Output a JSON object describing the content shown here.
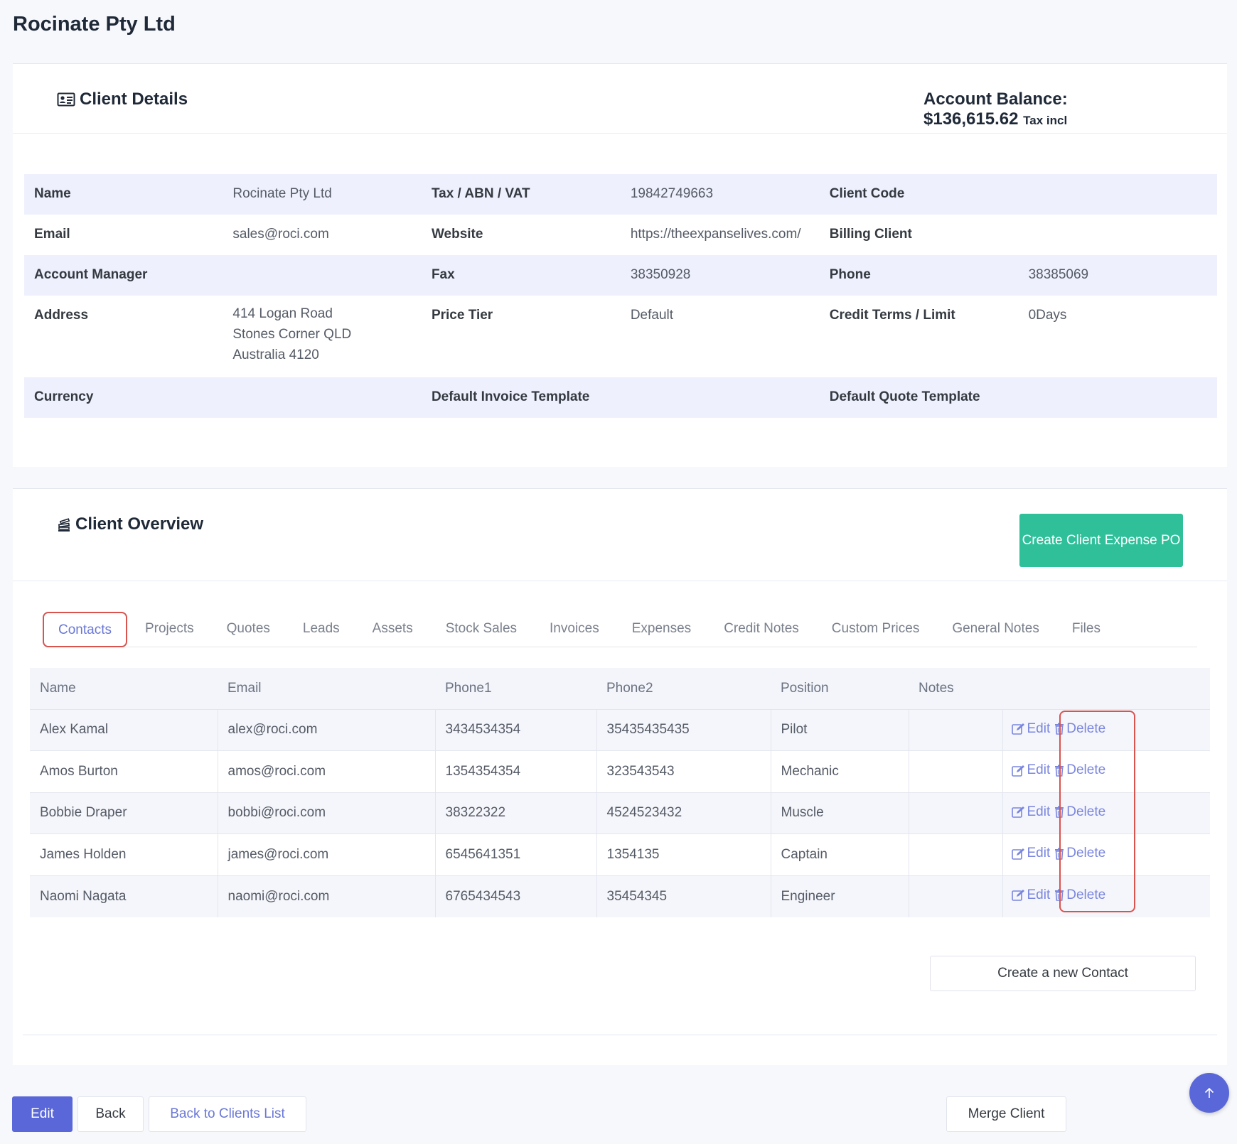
{
  "page": {
    "title": "Rocinate Pty Ltd"
  },
  "client_details": {
    "heading": "Client Details",
    "icon": "id-card-icon",
    "balance_label": "Account Balance:",
    "balance_value": "$136,615.62",
    "balance_suffix": "Tax incl",
    "fields": {
      "name_label": "Name",
      "name_value": "Rocinate Pty Ltd",
      "tax_label": "Tax / ABN / VAT",
      "tax_value": "19842749663",
      "client_code_label": "Client Code",
      "client_code_value": "",
      "email_label": "Email",
      "email_value": "sales@roci.com",
      "website_label": "Website",
      "website_value": "https://theexpanselives.com/",
      "billing_label": "Billing Client",
      "billing_value": "",
      "manager_label": "Account Manager",
      "manager_value": "",
      "fax_label": "Fax",
      "fax_value": "38350928",
      "phone_label": "Phone",
      "phone_value": "38385069",
      "address_label": "Address",
      "address_lines": [
        "414 Logan Road",
        "Stones Corner QLD",
        "Australia 4120"
      ],
      "price_tier_label": "Price Tier",
      "price_tier_value": "Default",
      "credit_label": "Credit Terms / Limit",
      "credit_value": "0Days",
      "currency_label": "Currency",
      "currency_value": "",
      "invoice_tpl_label": "Default Invoice Template",
      "invoice_tpl_value": "",
      "quote_tpl_label": "Default Quote Template",
      "quote_tpl_value": ""
    }
  },
  "client_overview": {
    "heading": "Client Overview",
    "icon": "stack-icon",
    "create_po_label": "Create Client Expense PO",
    "tabs": [
      "Contacts",
      "Projects",
      "Quotes",
      "Leads",
      "Assets",
      "Stock Sales",
      "Invoices",
      "Expenses",
      "Credit Notes",
      "Custom Prices",
      "General Notes",
      "Files"
    ],
    "active_tab": "Contacts",
    "columns": [
      "Name",
      "Email",
      "Phone1",
      "Phone2",
      "Position",
      "Notes"
    ],
    "rows": [
      {
        "name": "Alex Kamal",
        "email": "alex@roci.com",
        "phone1": "3434534354",
        "phone2": "35435435435",
        "position": "Pilot",
        "notes": ""
      },
      {
        "name": "Amos Burton",
        "email": "amos@roci.com",
        "phone1": "1354354354",
        "phone2": "323543543",
        "position": "Mechanic",
        "notes": ""
      },
      {
        "name": "Bobbie Draper",
        "email": "bobbi@roci.com",
        "phone1": "38322322",
        "phone2": "4524523432",
        "position": "Muscle",
        "notes": ""
      },
      {
        "name": "James Holden",
        "email": "james@roci.com",
        "phone1": "6545641351",
        "phone2": "1354135",
        "position": "Captain",
        "notes": ""
      },
      {
        "name": "Naomi Nagata",
        "email": "naomi@roci.com",
        "phone1": "6765434543",
        "phone2": "35454345",
        "position": "Engineer",
        "notes": ""
      }
    ],
    "edit_label": "Edit",
    "delete_label": "Delete",
    "new_contact_label": "Create a new Contact"
  },
  "footer": {
    "edit_label": "Edit",
    "back_label": "Back",
    "back_to_list_label": "Back to Clients List",
    "merge_label": "Merge Client"
  },
  "colors": {
    "primary": "#5a67d8",
    "success": "#2fc09a",
    "highlight": "#d9534f",
    "link": "#6a78d6"
  }
}
